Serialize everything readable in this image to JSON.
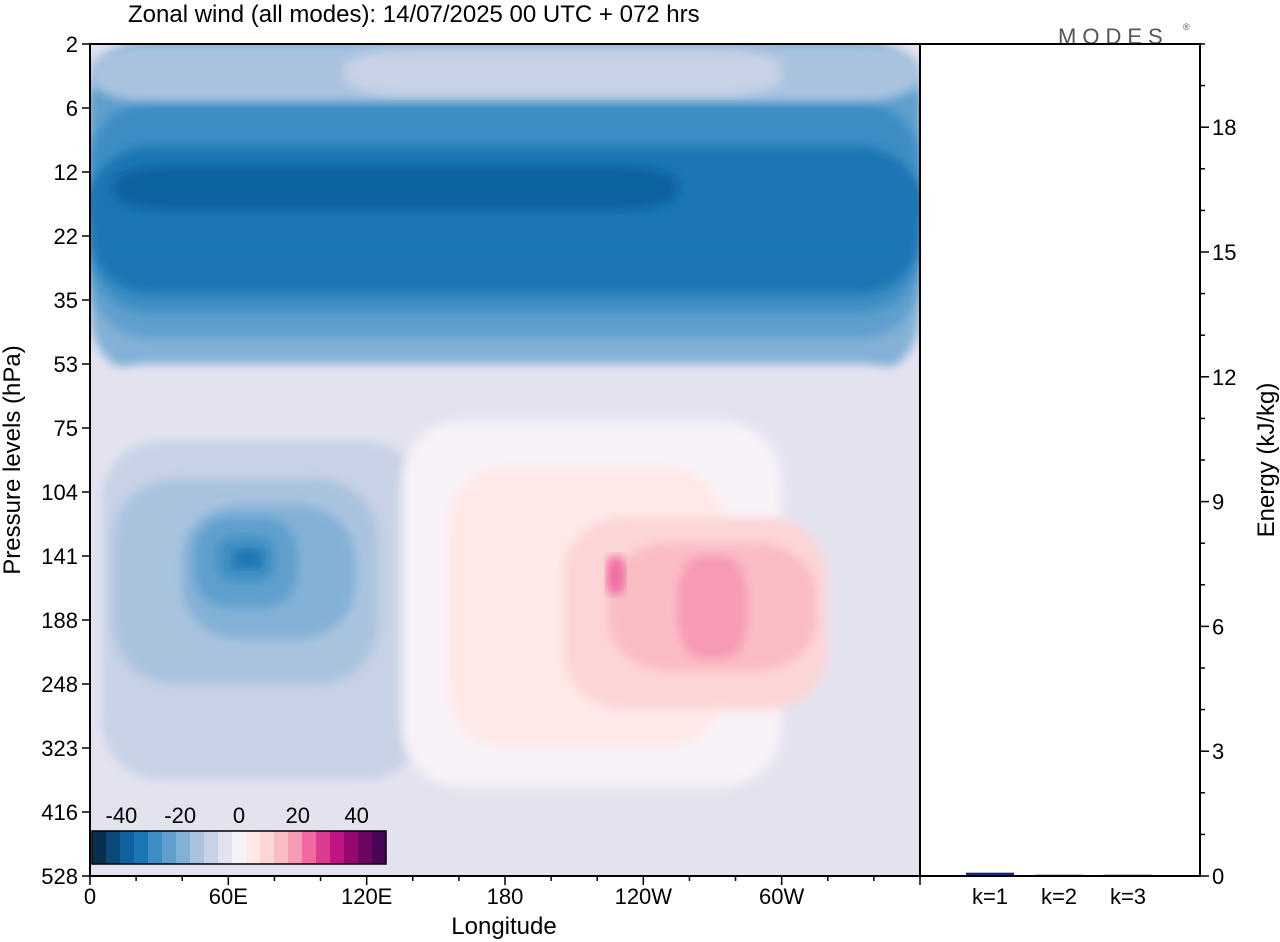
{
  "title": "Zonal wind (all modes):  14/07/2025  00 UTC  + 072 hrs",
  "logo": "MODES",
  "logo_mark": "®",
  "chart_data": [
    {
      "type": "heatmap",
      "title": "Zonal wind (all modes):  14/07/2025  00 UTC  + 072 hrs",
      "xlabel": "Longitude",
      "ylabel": "Pressure levels (hPa)",
      "x_ticks": [
        "0",
        "60E",
        "120E",
        "180",
        "120W",
        "60W"
      ],
      "x_tick_values": [
        0,
        60,
        120,
        180,
        240,
        300
      ],
      "xlim": [
        0,
        360
      ],
      "y_ticks": [
        "2",
        "6",
        "12",
        "22",
        "35",
        "53",
        "75",
        "104",
        "141",
        "188",
        "248",
        "323",
        "416",
        "528"
      ],
      "colorbar": {
        "tick_labels": [
          "-40",
          "-20",
          "0",
          "20",
          "40"
        ],
        "range": [
          -50,
          50
        ],
        "step": 5,
        "colors": [
          "#08304e",
          "#0b4a78",
          "#0e62a0",
          "#1b76b3",
          "#3c8ec4",
          "#5e9fcd",
          "#83b1d6",
          "#a9c3df",
          "#c8d1e6",
          "#e3e3f0",
          "#f7f2f7",
          "#ffe9e7",
          "#fcd5d6",
          "#fabcc4",
          "#f79ab4",
          "#f06aa1",
          "#de3a92",
          "#c21585",
          "#97086e",
          "#6d0563",
          "#4a0457"
        ]
      },
      "features": [
        {
          "name": "easterly stratospheric jet",
          "value": -40
        },
        {
          "name": "easterly cell near 70E, 141 hPa",
          "value": -35
        },
        {
          "name": "westerly cell near 100W, 141 hPa",
          "value": 20
        }
      ]
    },
    {
      "type": "bar",
      "title": "",
      "xlabel": "",
      "ylabel": "Energy (kJ/kg)",
      "categories": [
        "k=1",
        "k=2",
        "k=3"
      ],
      "values": [
        0.08,
        0.03,
        0.03
      ],
      "ylim": [
        0,
        20
      ],
      "y_ticks": [
        0,
        3,
        6,
        9,
        12,
        15,
        18
      ],
      "bar_color": "#1a237e"
    }
  ]
}
